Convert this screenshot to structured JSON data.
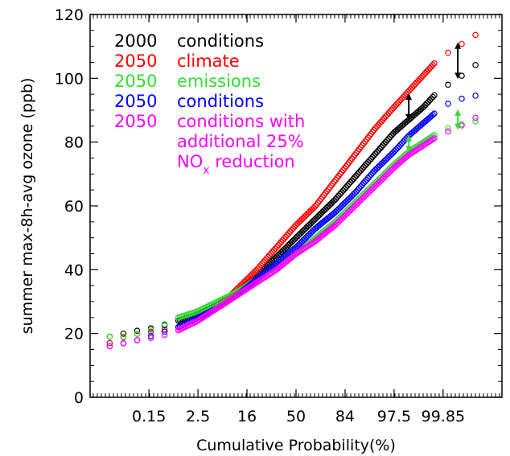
{
  "chart_data": {
    "type": "scatter",
    "title": "",
    "xlabel": "Cumulative Probability(%)",
    "ylabel": "summer max-8h-avg ozone (ppb)",
    "ylim": [
      0,
      120
    ],
    "y_ticks": [
      "0",
      "20",
      "40",
      "60",
      "80",
      "100",
      "120"
    ],
    "x_scale": "probit (normal probability)",
    "x_ticks": [
      "0.15",
      "2.5",
      "16",
      "50",
      "84",
      "97.5",
      "99.85"
    ],
    "x_tick_z": [
      -3,
      -2,
      -1,
      0,
      1,
      2,
      3
    ],
    "x_range_z": [
      -4.2,
      4.2
    ],
    "grid": false,
    "legend_placement": "top-left",
    "marker": "open circle",
    "series": [
      {
        "name": "2000 conditions",
        "color": "#000000",
        "points_z_ppb": [
          [
            -3.8,
            19
          ],
          [
            -3.5,
            20
          ],
          [
            -3.2,
            21
          ],
          [
            -2.8,
            22
          ],
          [
            -2.4,
            24
          ],
          [
            -2.0,
            26
          ],
          [
            -1.6,
            29
          ],
          [
            -1.2,
            33
          ],
          [
            -0.8,
            38
          ],
          [
            -0.4,
            44
          ],
          [
            0.0,
            50
          ],
          [
            0.4,
            56
          ],
          [
            0.8,
            62
          ],
          [
            1.2,
            69
          ],
          [
            1.6,
            76
          ],
          [
            2.0,
            83
          ],
          [
            2.3,
            87
          ],
          [
            2.6,
            91
          ],
          [
            2.9,
            96
          ],
          [
            3.2,
            99
          ],
          [
            3.5,
            102
          ],
          [
            3.8,
            106
          ]
        ]
      },
      {
        "name": "2050 climate",
        "color": "#ff0000",
        "points_z_ppb": [
          [
            -3.8,
            17
          ],
          [
            -3.5,
            19
          ],
          [
            -3.2,
            20
          ],
          [
            -2.8,
            21
          ],
          [
            -2.4,
            22
          ],
          [
            -2.0,
            25
          ],
          [
            -1.6,
            28
          ],
          [
            -1.2,
            34
          ],
          [
            -0.8,
            40
          ],
          [
            -0.4,
            47
          ],
          [
            0.0,
            54
          ],
          [
            0.4,
            60
          ],
          [
            0.8,
            68
          ],
          [
            1.2,
            76
          ],
          [
            1.6,
            84
          ],
          [
            2.0,
            91
          ],
          [
            2.3,
            96
          ],
          [
            2.6,
            101
          ],
          [
            2.9,
            106
          ],
          [
            3.2,
            109
          ],
          [
            3.5,
            112
          ],
          [
            3.8,
            115
          ]
        ]
      },
      {
        "name": "2050 emissions",
        "color": "#33dd33",
        "points_z_ppb": [
          [
            -3.8,
            19
          ],
          [
            -3.5,
            19
          ],
          [
            -3.2,
            20
          ],
          [
            -2.8,
            22
          ],
          [
            -2.4,
            25
          ],
          [
            -2.0,
            27
          ],
          [
            -1.6,
            30
          ],
          [
            -1.2,
            33
          ],
          [
            -0.8,
            37
          ],
          [
            -0.4,
            41
          ],
          [
            0.0,
            45
          ],
          [
            0.4,
            50
          ],
          [
            0.8,
            55
          ],
          [
            1.2,
            61
          ],
          [
            1.6,
            67
          ],
          [
            2.0,
            73
          ],
          [
            2.3,
            77
          ],
          [
            2.6,
            80
          ],
          [
            2.9,
            83
          ],
          [
            3.2,
            85
          ],
          [
            3.5,
            86
          ],
          [
            3.8,
            87
          ]
        ]
      },
      {
        "name": "2050 conditions",
        "color": "#0000ff",
        "points_z_ppb": [
          [
            -3.8,
            16
          ],
          [
            -3.5,
            17
          ],
          [
            -3.2,
            18
          ],
          [
            -2.8,
            20
          ],
          [
            -2.4,
            22
          ],
          [
            -2.0,
            25
          ],
          [
            -1.6,
            28
          ],
          [
            -1.2,
            32
          ],
          [
            -0.8,
            37
          ],
          [
            -0.4,
            42
          ],
          [
            0.0,
            47
          ],
          [
            0.4,
            53
          ],
          [
            0.8,
            58
          ],
          [
            1.2,
            64
          ],
          [
            1.6,
            71
          ],
          [
            2.0,
            77
          ],
          [
            2.3,
            82
          ],
          [
            2.6,
            86
          ],
          [
            2.9,
            90
          ],
          [
            3.2,
            93
          ],
          [
            3.5,
            94
          ],
          [
            3.8,
            95
          ]
        ]
      },
      {
        "name": "2050 conditions with additional 25% NOx reduction",
        "color": "#ff00ff",
        "points_z_ppb": [
          [
            -3.8,
            16
          ],
          [
            -3.5,
            17
          ],
          [
            -3.2,
            18
          ],
          [
            -2.8,
            19
          ],
          [
            -2.4,
            21
          ],
          [
            -2.0,
            24
          ],
          [
            -1.6,
            28
          ],
          [
            -1.2,
            32
          ],
          [
            -0.8,
            36
          ],
          [
            -0.4,
            40
          ],
          [
            0.0,
            45
          ],
          [
            0.4,
            49
          ],
          [
            0.8,
            54
          ],
          [
            1.2,
            60
          ],
          [
            1.6,
            66
          ],
          [
            2.0,
            72
          ],
          [
            2.3,
            76
          ],
          [
            2.6,
            79
          ],
          [
            2.9,
            82
          ],
          [
            3.2,
            84
          ],
          [
            3.5,
            86
          ],
          [
            3.8,
            89
          ]
        ]
      }
    ],
    "legend_lines": [
      {
        "year": "2000",
        "text": "conditions",
        "color": "#000000"
      },
      {
        "year": "2050",
        "text": "climate",
        "color": "#ff0000"
      },
      {
        "year": "2050",
        "text": "emissions",
        "color": "#33dd33"
      },
      {
        "year": "2050",
        "text": "conditions",
        "color": "#0000ff"
      },
      {
        "year": "2050",
        "text": "conditions with",
        "color": "#ff00ff"
      },
      {
        "year": "",
        "text": "additional 25%",
        "color": "#ff00ff"
      },
      {
        "year": "",
        "text": "NO",
        "sub": "x",
        "tail": " reduction",
        "color": "#ff00ff"
      }
    ],
    "arrows": [
      {
        "z": 2.3,
        "from": 95,
        "to": 87,
        "color": "#000000"
      },
      {
        "z": 3.3,
        "from": 111,
        "to": 100,
        "color": "#000000"
      },
      {
        "z": 2.3,
        "from": 82,
        "to": 77,
        "color": "#33dd33"
      },
      {
        "z": 3.3,
        "from": 90,
        "to": 84,
        "color": "#33dd33"
      }
    ]
  }
}
